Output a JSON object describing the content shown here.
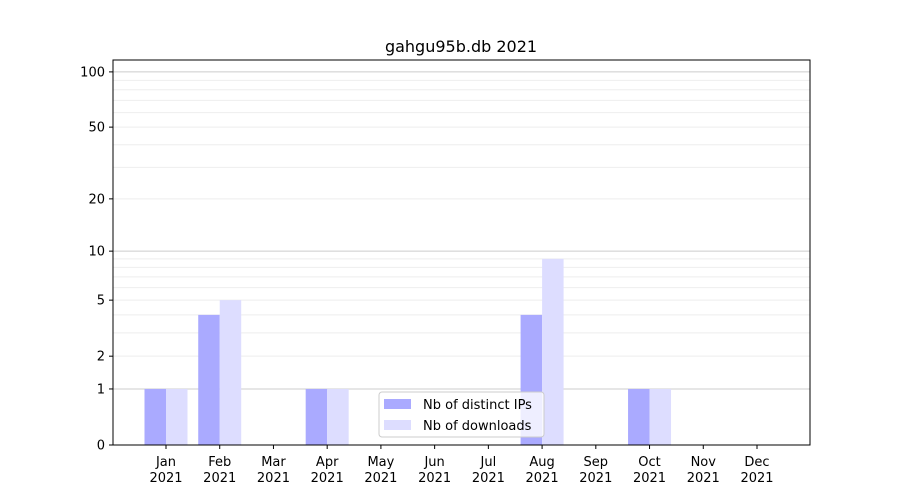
{
  "chart_data": {
    "type": "bar",
    "title": "gahgu95b.db 2021",
    "xlabel": "",
    "ylabel": "",
    "yscale": "log(1+y)",
    "ylim": [
      0,
      116
    ],
    "yticks": [
      0,
      1,
      2,
      5,
      10,
      20,
      50,
      100
    ],
    "grid": true,
    "legend_position": "bottom-center",
    "categories": [
      "Jan\n2021",
      "Feb\n2021",
      "Mar\n2021",
      "Apr\n2021",
      "May\n2021",
      "Jun\n2021",
      "Jul\n2021",
      "Aug\n2021",
      "Sep\n2021",
      "Oct\n2021",
      "Nov\n2021",
      "Dec\n2021"
    ],
    "series": [
      {
        "name": "Nb of distinct IPs",
        "color": "#aaaaff",
        "values": [
          1,
          4,
          0,
          1,
          0,
          0,
          0,
          4,
          0,
          1,
          0,
          0
        ]
      },
      {
        "name": "Nb of downloads",
        "color": "#ddddff",
        "values": [
          1,
          5,
          0,
          1,
          0,
          0,
          0,
          9,
          0,
          1,
          0,
          0
        ]
      }
    ]
  }
}
